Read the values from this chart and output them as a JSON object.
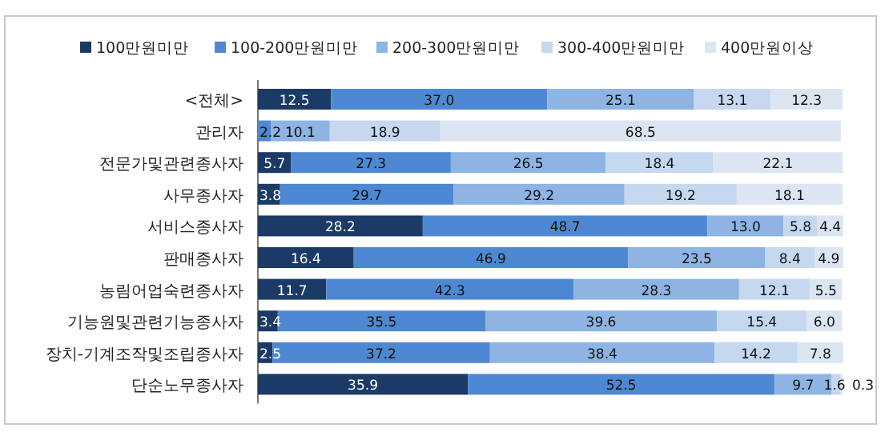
{
  "chart_data": {
    "type": "bar",
    "orientation": "horizontal",
    "stacked": true,
    "legend": "top",
    "xlim": [
      0,
      100
    ],
    "tick_labels": "y",
    "categories": [
      "<전체>",
      "관리자",
      "전문가및관련종사자",
      "사무종사자",
      "서비스종사자",
      "판매종사자",
      "농림어업숙련종사자",
      "기능원및관련기능종사자",
      "장치-기계조작및조립종사자",
      "단순노무종사자"
    ],
    "series": [
      {
        "name": "100만원미만",
        "color": "#1b3a66",
        "values": [
          12.5,
          null,
          5.7,
          3.8,
          28.2,
          16.4,
          11.7,
          3.4,
          2.5,
          35.9
        ],
        "value_labels": [
          "12.5",
          null,
          "5.7",
          "3.8",
          "28.2",
          "16.4",
          "11.7",
          "3.4",
          "2.5",
          "35.9"
        ]
      },
      {
        "name": "100-200만원미만",
        "color": "#4f88d2",
        "values": [
          37.0,
          2.2,
          27.3,
          29.7,
          48.7,
          46.9,
          42.3,
          35.5,
          37.2,
          52.5
        ],
        "value_labels": [
          "37.0",
          "2.2",
          "27.3",
          "29.7",
          "48.7",
          "46.9",
          "42.3",
          "35.5",
          "37.2",
          "52.5"
        ]
      },
      {
        "name": "200-300만원미만",
        "color": "#8eb4e3",
        "values": [
          25.1,
          10.1,
          26.5,
          29.2,
          13.0,
          23.5,
          28.3,
          39.6,
          38.4,
          9.7
        ],
        "value_labels": [
          "25.1",
          "10.1",
          "26.5",
          "29.2",
          "13.0",
          "23.5",
          "28.3",
          "39.6",
          "38.4",
          "9.7"
        ]
      },
      {
        "name": "300-400만원미만",
        "color": "#c5d8f0",
        "values": [
          13.1,
          18.9,
          18.4,
          19.2,
          5.8,
          8.4,
          12.1,
          15.4,
          14.2,
          1.6
        ],
        "value_labels": [
          "13.1",
          "18.9",
          "18.4",
          "19.2",
          "5.8",
          "8.4",
          "12.1",
          "15.4",
          "14.2",
          "1.6"
        ]
      },
      {
        "name": "400만원이상",
        "color": "#dce6f2",
        "values": [
          12.3,
          68.5,
          22.1,
          18.1,
          4.4,
          4.9,
          5.5,
          6.0,
          7.8,
          0.3
        ],
        "value_labels": [
          "12.3",
          "68.5",
          "22.1",
          "18.1",
          "4.4",
          "4.9",
          "5.5",
          "6.0",
          "7.8",
          "0.3"
        ]
      }
    ]
  }
}
